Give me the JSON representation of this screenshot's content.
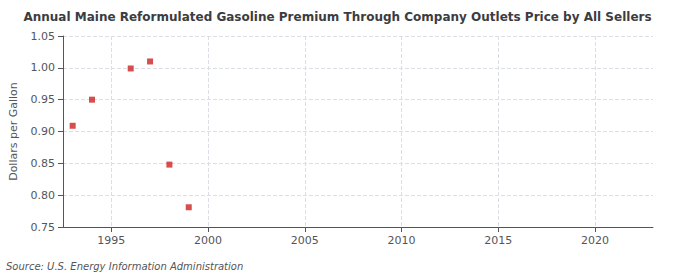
{
  "chart_data": {
    "type": "scatter",
    "title": "Annual Maine Reformulated Gasoline Premium Through Company Outlets Price by All Sellers",
    "ylabel": "Dollars per Gallon",
    "annotation": "Source: U.S. Energy Information Administration",
    "x": [
      1993,
      1994,
      1996,
      1997,
      1998,
      1999
    ],
    "values": [
      0.909,
      0.95,
      0.999,
      1.01,
      0.848,
      0.781
    ],
    "color": "#cc2222",
    "marker": "square",
    "xlim": [
      1992.5,
      2023
    ],
    "ylim": [
      0.75,
      1.05
    ],
    "xticks": [
      1995,
      2000,
      2005,
      2010,
      2015,
      2020
    ],
    "yticks": [
      0.75,
      {
        "value": 0.8,
        "label": "0.80"
      },
      0.85,
      {
        "value": 0.9,
        "label": "0.90"
      },
      0.95,
      {
        "value": 1.0,
        "label": "1.00"
      },
      1.05
    ],
    "grid": true
  }
}
